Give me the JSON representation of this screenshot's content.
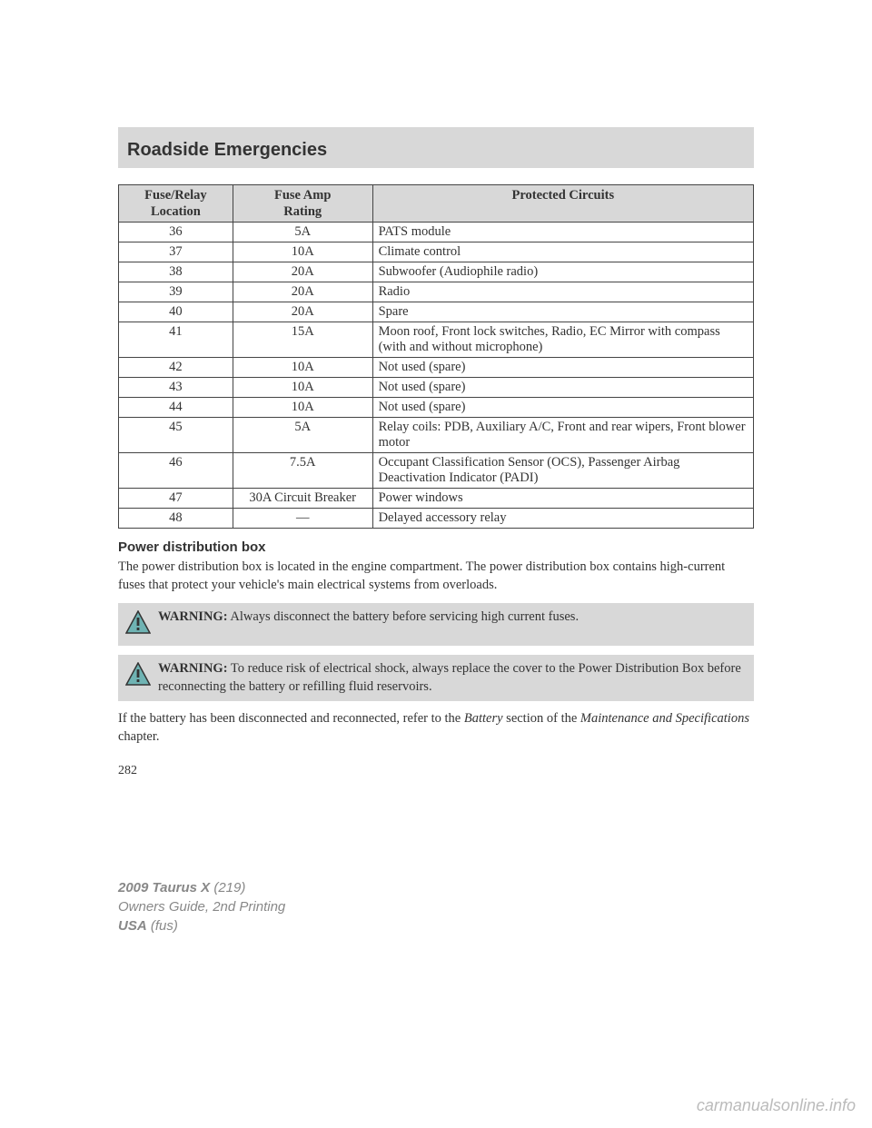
{
  "header": {
    "title": "Roadside Emergencies"
  },
  "table": {
    "columns": [
      "Fuse/Relay\nLocation",
      "Fuse Amp\nRating",
      "Protected Circuits"
    ],
    "col_widths_pct": [
      18,
      22,
      60
    ],
    "header_bg": "#d8d8d8",
    "border_color": "#444444",
    "font_size_pt": 11,
    "col_align": [
      "center",
      "center",
      "left"
    ],
    "rows": [
      [
        "36",
        "5A",
        "PATS module"
      ],
      [
        "37",
        "10A",
        "Climate control"
      ],
      [
        "38",
        "20A",
        "Subwoofer (Audiophile radio)"
      ],
      [
        "39",
        "20A",
        "Radio"
      ],
      [
        "40",
        "20A",
        "Spare"
      ],
      [
        "41",
        "15A",
        "Moon roof, Front lock switches, Radio, EC Mirror with compass (with and without microphone)"
      ],
      [
        "42",
        "10A",
        "Not used (spare)"
      ],
      [
        "43",
        "10A",
        "Not used (spare)"
      ],
      [
        "44",
        "10A",
        "Not used (spare)"
      ],
      [
        "45",
        "5A",
        "Relay coils: PDB, Auxiliary A/C, Front and rear wipers, Front blower motor"
      ],
      [
        "46",
        "7.5A",
        "Occupant Classification Sensor (OCS), Passenger Airbag Deactivation Indicator (PADI)"
      ],
      [
        "47",
        "30A Circuit Breaker",
        "Power windows"
      ],
      [
        "48",
        "—",
        "Delayed accessory relay"
      ]
    ]
  },
  "pdb": {
    "heading": "Power distribution box",
    "paragraph": "The power distribution box is located in the engine compartment. The power distribution box contains high-current fuses that protect your vehicle's main electrical systems from overloads."
  },
  "warnings": [
    {
      "label": "WARNING:",
      "text": " Always disconnect the battery before servicing high current fuses.",
      "icon_fill": "#6fb3b3",
      "icon_stroke": "#333333"
    },
    {
      "label": "WARNING:",
      "text": " To reduce risk of electrical shock, always replace the cover to the Power Distribution Box before reconnecting the battery or refilling fluid reservoirs.",
      "icon_fill": "#6fb3b3",
      "icon_stroke": "#333333"
    }
  ],
  "closing": {
    "lead": "If the battery has been disconnected and reconnected, refer to the ",
    "italic1": "Battery",
    "mid": " section of the ",
    "italic2": "Maintenance and Specifications",
    "tail": " chapter."
  },
  "page_number": "282",
  "footer": {
    "line1_model": "2009 Taurus X",
    "line1_code": " (219)",
    "line2": "Owners Guide, 2nd Printing",
    "line3_a": "USA",
    "line3_b": " (fus)"
  },
  "watermark": "carmanualsonline.info",
  "colors": {
    "band_bg": "#d8d8d8",
    "body_text": "#333333",
    "footer_text": "#888888",
    "watermark_text": "#bbbbbb",
    "page_bg": "#ffffff"
  }
}
